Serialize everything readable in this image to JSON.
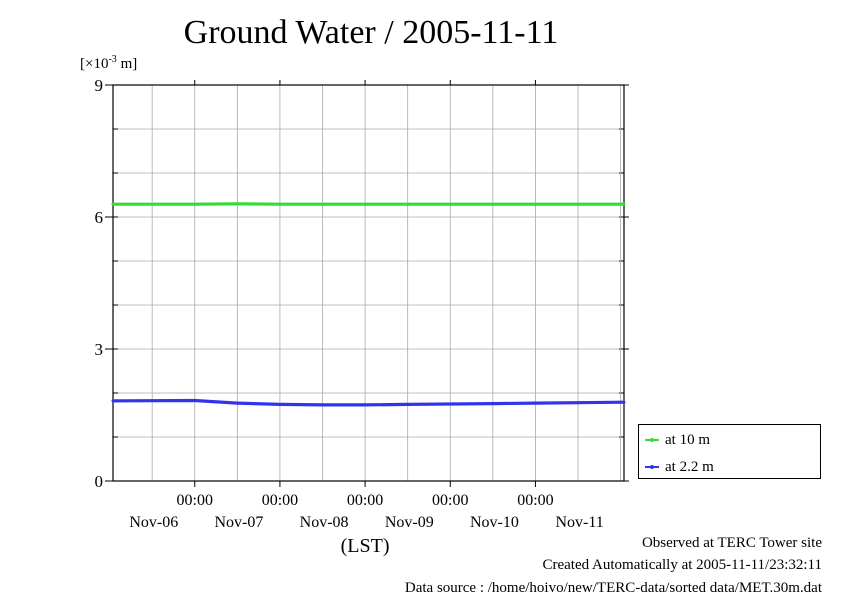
{
  "chart_data": {
    "type": "line",
    "title": "Ground Water / 2005-11-11",
    "unit_prefix": "[×10",
    "unit_exp": "-3",
    "unit_suffix": " m]",
    "ylim": [
      0,
      9
    ],
    "yticks": [
      {
        "value": 0,
        "label": "0"
      },
      {
        "value": 3,
        "label": "3"
      },
      {
        "value": 6,
        "label": "6"
      },
      {
        "value": 9,
        "label": "9"
      }
    ],
    "xlim": [
      -0.96,
      5.04
    ],
    "xticks": [
      {
        "value": 0,
        "time": "00:00",
        "date": "Nov-06"
      },
      {
        "value": 1,
        "time": "00:00",
        "date": "Nov-07"
      },
      {
        "value": 2,
        "time": "00:00",
        "date": "Nov-08"
      },
      {
        "value": 3,
        "time": "00:00",
        "date": "Nov-09"
      },
      {
        "value": 4,
        "time": "00:00",
        "date": "Nov-10"
      }
    ],
    "xlabel": "(LST)",
    "extra_date_labels": [
      {
        "value": 5,
        "date": "Nov-11"
      }
    ],
    "series": [
      {
        "name": "at 10 m",
        "color": "#33dd33",
        "x": [
          -0.96,
          0,
          0.5,
          1,
          1.5,
          2,
          2.5,
          3,
          3.5,
          4,
          4.5,
          5.04
        ],
        "y": [
          6.29,
          6.29,
          6.3,
          6.29,
          6.29,
          6.29,
          6.29,
          6.29,
          6.29,
          6.29,
          6.29,
          6.29
        ]
      },
      {
        "name": "at 2.2 m",
        "color": "#3333ee",
        "x": [
          -0.96,
          0,
          0.5,
          1,
          1.5,
          2,
          2.5,
          3,
          3.5,
          4,
          4.5,
          5.04
        ],
        "y": [
          1.82,
          1.83,
          1.77,
          1.74,
          1.73,
          1.73,
          1.74,
          1.75,
          1.76,
          1.77,
          1.78,
          1.79
        ]
      }
    ]
  },
  "footer": {
    "observed": "Observed at TERC Tower site",
    "created": "Created Automatically at 2005-11-11/23:32:11",
    "source": "Data source : /home/hoivo/new/TERC-data/sorted  data/MET.30m.dat"
  }
}
